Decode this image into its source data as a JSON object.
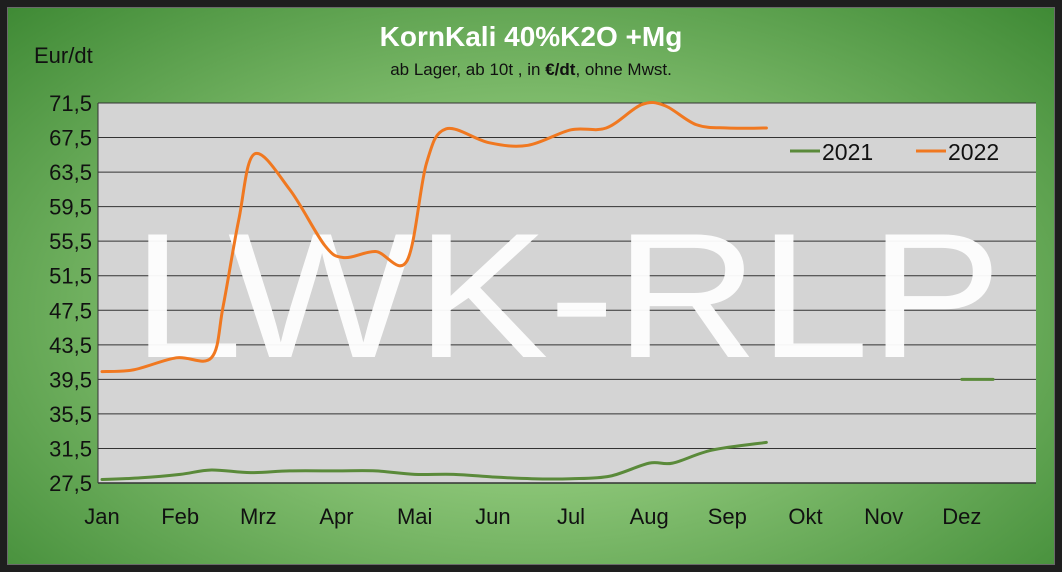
{
  "chart_data": {
    "type": "line",
    "title": "KornKali 40%K2O +Mg",
    "subtitle": {
      "before": "ab Lager, ab 10t , in ",
      "bold": "€/dt",
      "after": ", ohne Mwst."
    },
    "ylabel": "Eur/dt",
    "watermark": "LWK-RLP",
    "categories": [
      "Jan",
      "Feb",
      "Mrz",
      "Apr",
      "Mai",
      "Jun",
      "Jul",
      "Aug",
      "Sep",
      "Okt",
      "Nov",
      "Dez"
    ],
    "y_ticks": [
      "71,5",
      "67,5",
      "63,5",
      "59,5",
      "55,5",
      "51,5",
      "47,5",
      "43,5",
      "39,5",
      "35,5",
      "31,5",
      "27,5"
    ],
    "ylim": [
      27.5,
      71.5
    ],
    "grid": true,
    "legend_position": "top-right",
    "series": [
      {
        "name": "2021",
        "color": "#5a8a3a",
        "points": [
          [
            0,
            27.9
          ],
          [
            0.5,
            28.1
          ],
          [
            1,
            28.5
          ],
          [
            1.4,
            29.0
          ],
          [
            1.9,
            28.7
          ],
          [
            2.4,
            28.9
          ],
          [
            3,
            28.9
          ],
          [
            3.5,
            28.9
          ],
          [
            4,
            28.5
          ],
          [
            4.5,
            28.5
          ],
          [
            5,
            28.2
          ],
          [
            5.5,
            28.0
          ],
          [
            6,
            28.0
          ],
          [
            6.5,
            28.3
          ],
          [
            7,
            29.8
          ],
          [
            7.3,
            29.8
          ],
          [
            7.8,
            31.3
          ],
          [
            8.5,
            32.2
          ]
        ]
      },
      {
        "name": "2022",
        "color": "#f07820",
        "points": [
          [
            0,
            40.4
          ],
          [
            0.4,
            40.6
          ],
          [
            0.95,
            42.0
          ],
          [
            1.4,
            42.0
          ],
          [
            1.55,
            48.0
          ],
          [
            1.75,
            58.0
          ],
          [
            1.95,
            65.6
          ],
          [
            2.4,
            61.5
          ],
          [
            2.85,
            55.0
          ],
          [
            3.1,
            53.6
          ],
          [
            3.5,
            54.3
          ],
          [
            3.9,
            53.2
          ],
          [
            4.15,
            64.5
          ],
          [
            4.4,
            68.5
          ],
          [
            4.95,
            66.9
          ],
          [
            5.45,
            66.6
          ],
          [
            6,
            68.4
          ],
          [
            6.45,
            68.6
          ],
          [
            6.9,
            71.3
          ],
          [
            7.2,
            71.2
          ],
          [
            7.6,
            69.0
          ],
          [
            8.0,
            68.6
          ],
          [
            8.5,
            68.6
          ]
        ]
      },
      {
        "name": "",
        "color": "#5a8a3a",
        "points": [
          [
            11,
            39.5
          ],
          [
            11.4,
            39.5
          ]
        ]
      }
    ]
  }
}
